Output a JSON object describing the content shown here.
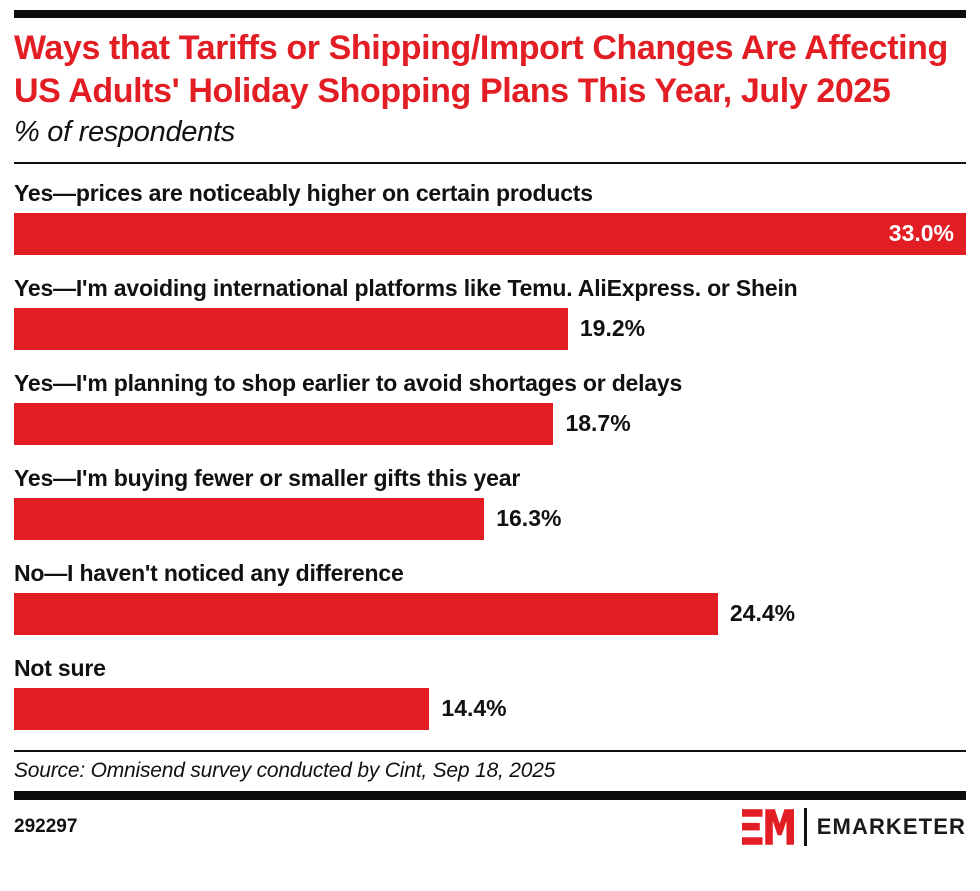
{
  "header": {
    "title": "Ways that Tariffs or Shipping/Import Changes Are Affecting US Adults' Holiday Shopping Plans This Year, July 2025",
    "subtitle": "% of respondents"
  },
  "chart_data": {
    "type": "bar",
    "orientation": "horizontal",
    "title": "Ways that Tariffs or Shipping/Import Changes Are Affecting US Adults' Holiday Shopping Plans This Year, July 2025",
    "subtitle": "% of respondents",
    "categories": [
      "Yes—prices are noticeably higher on certain products",
      "Yes—I'm avoiding international platforms like Temu. AliExpress. or Shein",
      "Yes—I'm planning to shop earlier to avoid shortages or delays",
      "Yes—I'm buying fewer or smaller gifts this year",
      "No—I haven't noticed any difference",
      "Not sure"
    ],
    "values": [
      33.0,
      19.2,
      18.7,
      16.3,
      24.4,
      14.4
    ],
    "value_labels": [
      "33.0%",
      "19.2%",
      "18.7%",
      "16.3%",
      "24.4%",
      "14.4%"
    ],
    "value_label_position": [
      "inside-end",
      "outside-end",
      "outside-end",
      "outside-end",
      "outside-end",
      "outside-end"
    ],
    "xlim": [
      0,
      33.0
    ],
    "grid": false,
    "legend": false,
    "bar_color": "#E21D24"
  },
  "footer": {
    "source": "Source: Omnisend survey conducted by Cint, Sep 18, 2025",
    "chart_id": "292297",
    "logo": {
      "mark": "EM",
      "wordmark": "EMARKETER"
    }
  },
  "colors": {
    "accent_red": "#E21D24",
    "text": "#111111",
    "rule": "#101010",
    "value_inside_text": "#FFFFFF",
    "background": "#FFFFFF"
  }
}
